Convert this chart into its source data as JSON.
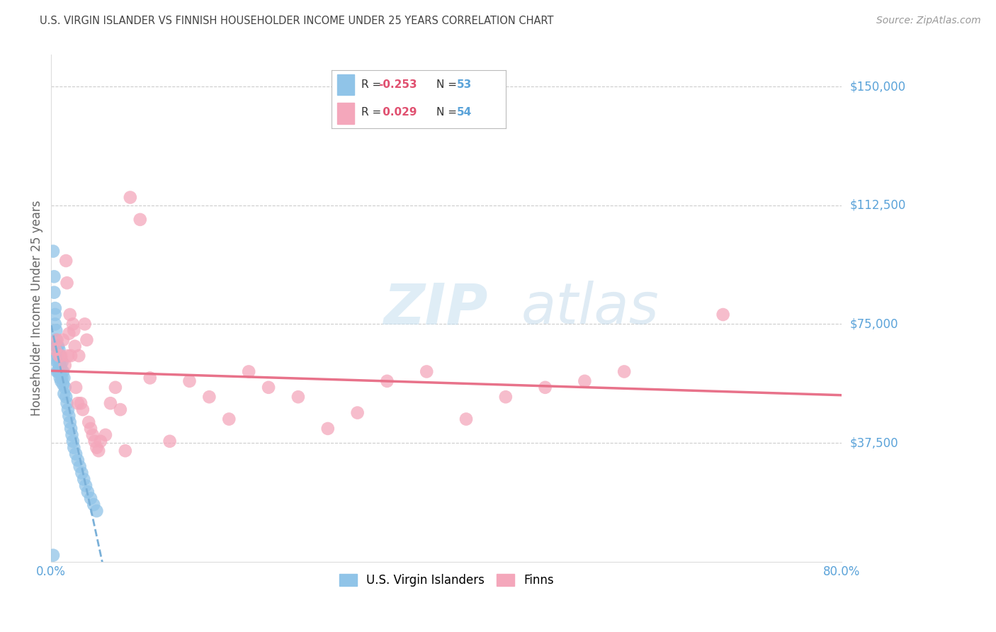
{
  "title": "U.S. VIRGIN ISLANDER VS FINNISH HOUSEHOLDER INCOME UNDER 25 YEARS CORRELATION CHART",
  "source": "Source: ZipAtlas.com",
  "ylabel": "Householder Income Under 25 years",
  "ytick_labels": [
    "$150,000",
    "$112,500",
    "$75,000",
    "$37,500"
  ],
  "ytick_values": [
    150000,
    112500,
    75000,
    37500
  ],
  "ylim": [
    0,
    160000
  ],
  "xlim": [
    0.0,
    0.8
  ],
  "watermark_zip": "ZIP",
  "watermark_atlas": "atlas",
  "blue_color": "#90c4e8",
  "pink_color": "#f4a7bb",
  "blue_line_color": "#7ab0d8",
  "pink_line_color": "#e8728a",
  "title_color": "#444444",
  "axis_label_color": "#666666",
  "ytick_color": "#5ba3d9",
  "xtick_color": "#5ba3d9",
  "legend_r1_val": "-0.253",
  "legend_n1_val": "53",
  "legend_r2_val": "0.029",
  "legend_n2_val": "54",
  "blue_label": "U.S. Virgin Islanders",
  "pink_label": "Finns",
  "blue_scatter_x": [
    0.002,
    0.003,
    0.003,
    0.004,
    0.004,
    0.004,
    0.005,
    0.005,
    0.005,
    0.006,
    0.006,
    0.006,
    0.006,
    0.007,
    0.007,
    0.007,
    0.007,
    0.008,
    0.008,
    0.008,
    0.009,
    0.009,
    0.009,
    0.01,
    0.01,
    0.01,
    0.011,
    0.011,
    0.012,
    0.012,
    0.013,
    0.013,
    0.014,
    0.015,
    0.016,
    0.017,
    0.018,
    0.019,
    0.02,
    0.021,
    0.022,
    0.023,
    0.025,
    0.027,
    0.029,
    0.031,
    0.033,
    0.035,
    0.037,
    0.04,
    0.043,
    0.046,
    0.002
  ],
  "blue_scatter_y": [
    98000,
    90000,
    85000,
    80000,
    78000,
    75000,
    73000,
    70000,
    68000,
    68000,
    65000,
    63000,
    60000,
    68000,
    65000,
    63000,
    60000,
    67000,
    64000,
    60000,
    65000,
    62000,
    58000,
    64000,
    61000,
    57000,
    63000,
    58000,
    60000,
    56000,
    58000,
    53000,
    55000,
    52000,
    50000,
    48000,
    46000,
    44000,
    42000,
    40000,
    38000,
    36000,
    34000,
    32000,
    30000,
    28000,
    26000,
    24000,
    22000,
    20000,
    18000,
    16000,
    2000
  ],
  "pink_scatter_x": [
    0.004,
    0.006,
    0.008,
    0.01,
    0.012,
    0.014,
    0.015,
    0.016,
    0.017,
    0.018,
    0.019,
    0.02,
    0.022,
    0.023,
    0.024,
    0.025,
    0.027,
    0.028,
    0.03,
    0.032,
    0.034,
    0.036,
    0.038,
    0.04,
    0.042,
    0.044,
    0.046,
    0.048,
    0.05,
    0.055,
    0.06,
    0.065,
    0.07,
    0.075,
    0.08,
    0.09,
    0.1,
    0.12,
    0.14,
    0.16,
    0.18,
    0.2,
    0.22,
    0.25,
    0.28,
    0.31,
    0.34,
    0.38,
    0.42,
    0.46,
    0.5,
    0.54,
    0.58,
    0.68
  ],
  "pink_scatter_y": [
    67000,
    70000,
    65000,
    65000,
    70000,
    62000,
    95000,
    88000,
    65000,
    72000,
    78000,
    65000,
    75000,
    73000,
    68000,
    55000,
    50000,
    65000,
    50000,
    48000,
    75000,
    70000,
    44000,
    42000,
    40000,
    38000,
    36000,
    35000,
    38000,
    40000,
    50000,
    55000,
    48000,
    35000,
    115000,
    108000,
    58000,
    38000,
    57000,
    52000,
    45000,
    60000,
    55000,
    52000,
    42000,
    47000,
    57000,
    60000,
    45000,
    52000,
    55000,
    57000,
    60000,
    78000
  ]
}
